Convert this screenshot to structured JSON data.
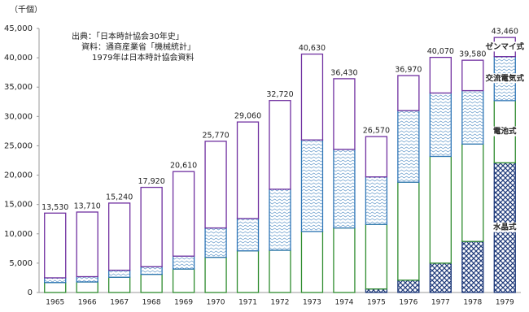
{
  "chart_data": {
    "type": "bar",
    "stacked": true,
    "unit_label": "（千個）",
    "notes": [
      "出典：「日本時計協会30年史」",
      "資料：通商産業省「機械統計」",
      "1979年は日本時計協会資料"
    ],
    "categories": [
      "1965",
      "1966",
      "1967",
      "1968",
      "1969",
      "1970",
      "1971",
      "1972",
      "1973",
      "1974",
      "1975",
      "1976",
      "1977",
      "1978",
      "1979"
    ],
    "series": [
      {
        "name": "水晶式",
        "color": "#1f3a7a",
        "pattern": "crosshatch",
        "values": [
          0,
          0,
          0,
          0,
          0,
          0,
          0,
          0,
          0,
          0,
          600,
          2100,
          5000,
          8700,
          22100
        ]
      },
      {
        "name": "電池式",
        "color": "#2e8b2e",
        "pattern": "none",
        "values": [
          1700,
          1800,
          2600,
          3100,
          4000,
          6000,
          7100,
          7200,
          10400,
          11000,
          11000,
          16700,
          18200,
          16600,
          10600
        ]
      },
      {
        "name": "交流電気式",
        "color": "#2e75b6",
        "pattern": "wave",
        "values": [
          800,
          900,
          1200,
          1300,
          2200,
          5000,
          5500,
          10400,
          15600,
          13400,
          8100,
          12200,
          10800,
          9100,
          7500
        ]
      },
      {
        "name": "ゼンマイ式",
        "color": "#7030a0",
        "pattern": "none",
        "values": [
          11030,
          11010,
          11440,
          13520,
          14410,
          14770,
          16460,
          15120,
          14630,
          12030,
          6870,
          5970,
          6070,
          5180,
          3260
        ]
      }
    ],
    "totals": [
      13530,
      13710,
      15240,
      17920,
      20610,
      25770,
      29060,
      32720,
      40630,
      36430,
      26570,
      36970,
      40070,
      39580,
      43460
    ],
    "total_labels": [
      "13,530",
      "13,710",
      "15,240",
      "17,920",
      "20,610",
      "25,770",
      "29,060",
      "32,720",
      "40,630",
      "36,430",
      "26,570",
      "36,970",
      "40,070",
      "39,580",
      "43,460"
    ],
    "ylim": [
      0,
      45000
    ],
    "yticks": [
      0,
      {
        "value": 5000,
        "label": "5,000"
      },
      {
        "value": 10000,
        "label": "10,000"
      },
      {
        "value": 15000,
        "label": "15,000"
      },
      {
        "value": 20000,
        "label": "20,000"
      },
      {
        "value": 25000,
        "label": "25,000"
      },
      {
        "value": 30000,
        "label": "30,000"
      },
      {
        "value": 35000,
        "label": "35,000"
      },
      {
        "value": 40000,
        "label": "40,000"
      },
      {
        "value": 45000,
        "label": "45,000"
      }
    ],
    "grid": false
  }
}
